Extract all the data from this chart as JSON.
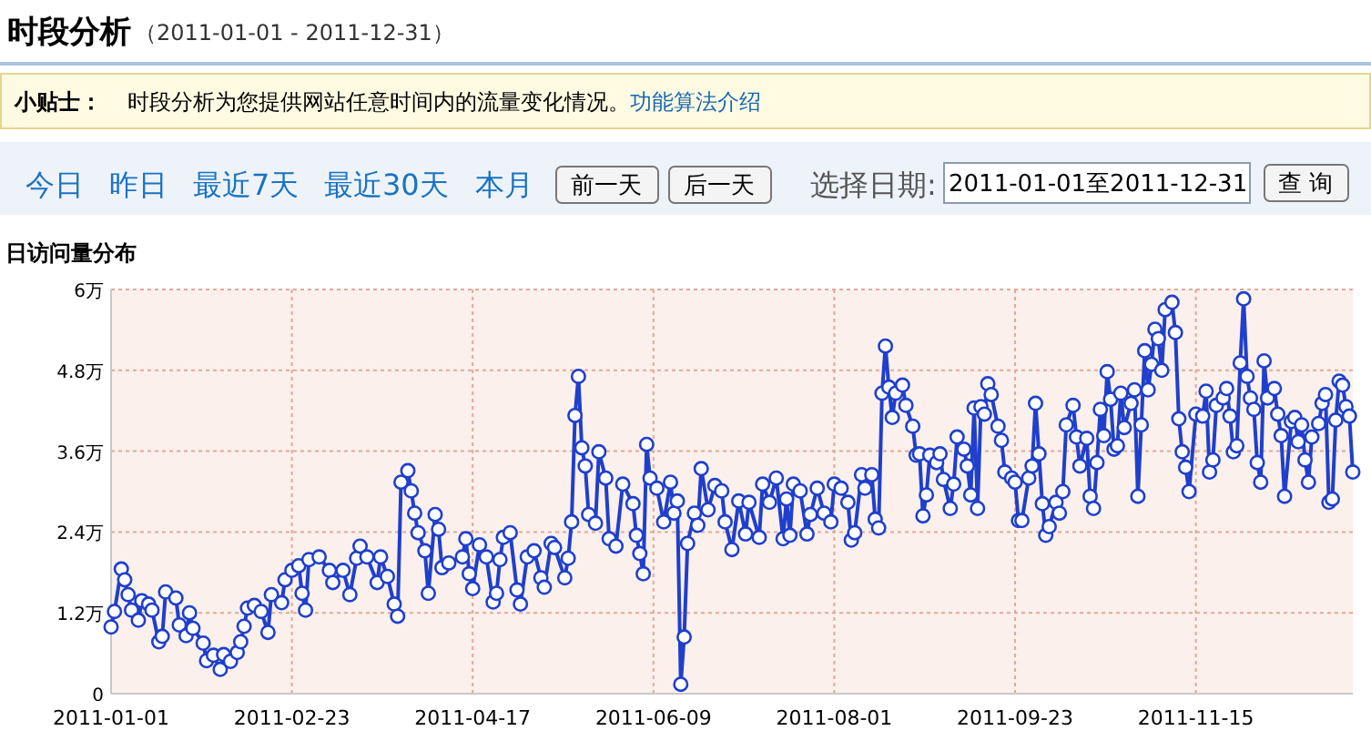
{
  "chart_data": {
    "type": "line",
    "title": "时段分析",
    "subtitle": "（2011-01-01 - 2011-12-31）",
    "annotations": [
      "小贴士：",
      "时段分析为您提供网站任意时间内的流量变化情况。",
      "功能算法介绍",
      "今日",
      "昨日",
      "最近7天",
      "最近30天",
      "本月",
      "前一天",
      "后一天",
      "选择日期:",
      "2011-01-01至2011-12-31",
      "查 询",
      "日访问量分布"
    ],
    "xlim": [
      "2011-01-01",
      "2011-12-31"
    ],
    "xticks": [
      "2011-01-01",
      "2011-02-23",
      "2011-04-17",
      "2011-06-09",
      "2011-08-01",
      "2011-09-23",
      "2011-11-15"
    ],
    "ylim": [
      0,
      6
    ],
    "yticks": [
      0,
      {
        "value": 1.2,
        "label": "1.2万"
      },
      {
        "value": 2.4,
        "label": "2.4万"
      },
      {
        "value": 3.6,
        "label": "3.6万"
      },
      {
        "value": 4.8,
        "label": "4.8万"
      },
      {
        "value": 6,
        "label": "6万"
      }
    ],
    "grid": true,
    "marker": "circle",
    "series": [
      {
        "color": "#1f3fcc",
        "x": [
          "2011-01-01",
          "2011-01-02",
          "2011-01-04",
          "2011-01-05",
          "2011-01-06",
          "2011-01-07",
          "2011-01-09",
          "2011-01-10",
          "2011-01-12",
          "2011-01-13",
          "2011-01-15",
          "2011-01-16",
          "2011-01-17",
          "2011-01-20",
          "2011-01-21",
          "2011-01-23",
          "2011-01-24",
          "2011-01-25",
          "2011-01-28",
          "2011-01-29",
          "2011-01-31",
          "2011-02-02",
          "2011-02-03",
          "2011-02-05",
          "2011-02-07",
          "2011-02-08",
          "2011-02-09",
          "2011-02-10",
          "2011-02-12",
          "2011-02-14",
          "2011-02-16",
          "2011-02-17",
          "2011-02-20",
          "2011-02-21",
          "2011-02-23",
          "2011-02-25",
          "2011-02-26",
          "2011-02-27",
          "2011-02-28",
          "2011-03-03",
          "2011-03-06",
          "2011-03-07",
          "2011-03-10",
          "2011-03-12",
          "2011-03-14",
          "2011-03-15",
          "2011-03-17",
          "2011-03-20",
          "2011-03-21",
          "2011-03-23",
          "2011-03-25",
          "2011-03-26",
          "2011-03-27",
          "2011-03-29",
          "2011-03-30",
          "2011-03-31",
          "2011-04-01",
          "2011-04-03",
          "2011-04-04",
          "2011-04-06",
          "2011-04-07",
          "2011-04-08",
          "2011-04-10",
          "2011-04-14",
          "2011-04-15",
          "2011-04-16",
          "2011-04-17",
          "2011-04-19",
          "2011-04-21",
          "2011-04-23",
          "2011-04-24",
          "2011-04-25",
          "2011-04-26",
          "2011-04-28",
          "2011-04-30",
          "2011-05-01",
          "2011-05-03",
          "2011-05-05",
          "2011-05-07",
          "2011-05-08",
          "2011-05-10",
          "2011-05-11",
          "2011-05-14",
          "2011-05-15",
          "2011-05-16",
          "2011-05-17",
          "2011-05-18",
          "2011-05-19",
          "2011-05-20",
          "2011-05-21",
          "2011-05-23",
          "2011-05-24",
          "2011-05-26",
          "2011-05-27",
          "2011-05-29",
          "2011-05-31",
          "2011-06-03",
          "2011-06-04",
          "2011-06-05",
          "2011-06-06",
          "2011-06-07",
          "2011-06-08",
          "2011-06-10",
          "2011-06-12",
          "2011-06-14",
          "2011-06-15",
          "2011-06-16",
          "2011-06-17",
          "2011-06-18",
          "2011-06-19",
          "2011-06-21",
          "2011-06-22",
          "2011-06-23",
          "2011-06-25",
          "2011-06-27",
          "2011-06-29",
          "2011-06-30",
          "2011-07-02",
          "2011-07-04",
          "2011-07-06",
          "2011-07-07",
          "2011-07-10",
          "2011-07-11",
          "2011-07-13",
          "2011-07-15",
          "2011-07-17",
          "2011-07-18",
          "2011-07-19",
          "2011-07-20",
          "2011-07-22",
          "2011-07-24",
          "2011-07-25",
          "2011-07-27",
          "2011-07-29",
          "2011-07-31",
          "2011-08-01",
          "2011-08-03",
          "2011-08-05",
          "2011-08-06",
          "2011-08-07",
          "2011-08-09",
          "2011-08-10",
          "2011-08-12",
          "2011-08-13",
          "2011-08-14",
          "2011-08-15",
          "2011-08-16",
          "2011-08-17",
          "2011-08-18",
          "2011-08-19",
          "2011-08-21",
          "2011-08-22",
          "2011-08-24",
          "2011-08-25",
          "2011-08-26",
          "2011-08-27",
          "2011-08-28",
          "2011-08-29",
          "2011-08-31",
          "2011-09-01",
          "2011-09-02",
          "2011-09-04",
          "2011-09-05",
          "2011-09-06",
          "2011-09-08",
          "2011-09-09",
          "2011-09-10",
          "2011-09-11",
          "2011-09-12",
          "2011-09-13",
          "2011-09-14",
          "2011-09-15",
          "2011-09-16",
          "2011-09-18",
          "2011-09-19",
          "2011-09-20",
          "2011-09-22",
          "2011-09-23",
          "2011-09-24",
          "2011-09-25",
          "2011-09-27",
          "2011-09-28",
          "2011-09-29",
          "2011-09-30",
          "2011-10-01",
          "2011-10-02",
          "2011-10-03",
          "2011-10-05",
          "2011-10-06",
          "2011-10-07",
          "2011-10-08",
          "2011-10-10",
          "2011-10-11",
          "2011-10-12",
          "2011-10-14",
          "2011-10-15",
          "2011-10-16",
          "2011-10-17",
          "2011-10-18",
          "2011-10-19",
          "2011-10-20",
          "2011-10-21",
          "2011-10-22",
          "2011-10-23",
          "2011-10-24",
          "2011-10-25",
          "2011-10-27",
          "2011-10-28",
          "2011-10-29",
          "2011-10-30",
          "2011-10-31",
          "2011-11-01",
          "2011-11-02",
          "2011-11-03",
          "2011-11-04",
          "2011-11-05",
          "2011-11-06",
          "2011-11-08",
          "2011-11-09",
          "2011-11-10",
          "2011-11-11",
          "2011-11-12",
          "2011-11-13",
          "2011-11-15",
          "2011-11-17",
          "2011-11-18",
          "2011-11-19",
          "2011-11-20",
          "2011-11-21",
          "2011-11-23",
          "2011-11-24",
          "2011-11-25",
          "2011-11-26",
          "2011-11-27",
          "2011-11-28",
          "2011-11-29",
          "2011-11-30",
          "2011-12-01",
          "2011-12-02",
          "2011-12-03",
          "2011-12-04",
          "2011-12-05",
          "2011-12-06",
          "2011-12-08",
          "2011-12-09",
          "2011-12-10",
          "2011-12-11",
          "2011-12-13",
          "2011-12-14",
          "2011-12-15",
          "2011-12-16",
          "2011-12-17",
          "2011-12-18",
          "2011-12-19",
          "2011-12-21",
          "2011-12-22",
          "2011-12-23",
          "2011-12-24",
          "2011-12-25",
          "2011-12-26",
          "2011-12-27",
          "2011-12-28",
          "2011-12-29",
          "2011-12-30",
          "2011-12-31"
        ],
        "values": [
          0.99,
          1.22,
          1.85,
          1.69,
          1.47,
          1.24,
          1.09,
          1.38,
          1.33,
          1.24,
          0.77,
          0.85,
          1.51,
          1.42,
          1.02,
          0.86,
          1.2,
          0.97,
          0.75,
          0.49,
          0.57,
          0.36,
          0.58,
          0.48,
          0.61,
          0.77,
          1.0,
          1.27,
          1.31,
          1.22,
          0.91,
          1.47,
          1.35,
          1.69,
          1.83,
          1.9,
          1.49,
          1.24,
          1.99,
          2.03,
          1.83,
          1.65,
          1.83,
          1.47,
          2.01,
          2.19,
          2.03,
          1.65,
          2.03,
          1.74,
          1.33,
          1.15,
          3.14,
          3.31,
          3.01,
          2.68,
          2.39,
          2.12,
          1.49,
          2.66,
          2.44,
          1.87,
          1.94,
          2.03,
          2.3,
          1.78,
          1.56,
          2.21,
          2.03,
          1.36,
          1.49,
          1.99,
          2.32,
          2.39,
          1.54,
          1.33,
          2.03,
          2.12,
          1.72,
          1.58,
          2.23,
          2.17,
          1.72,
          2.01,
          2.55,
          4.13,
          4.71,
          3.65,
          3.38,
          2.66,
          2.53,
          3.59,
          3.2,
          2.3,
          2.19,
          3.11,
          2.82,
          2.35,
          2.08,
          1.78,
          3.7,
          3.2,
          3.05,
          2.55,
          3.14,
          2.68,
          2.86,
          0.14,
          0.84,
          2.23,
          2.68,
          2.5,
          3.34,
          2.73,
          3.09,
          3.01,
          2.55,
          2.14,
          2.86,
          2.37,
          2.84,
          2.32,
          3.11,
          2.84,
          3.2,
          2.3,
          2.89,
          2.35,
          3.11,
          3.01,
          2.37,
          2.66,
          3.05,
          2.68,
          2.55,
          3.11,
          3.05,
          2.84,
          2.28,
          2.39,
          3.25,
          3.05,
          3.25,
          2.59,
          2.46,
          4.46,
          5.16,
          4.55,
          4.1,
          4.46,
          4.58,
          4.28,
          3.97,
          3.54,
          3.56,
          2.64,
          2.95,
          3.54,
          3.43,
          3.56,
          3.18,
          2.75,
          3.11,
          3.81,
          3.63,
          3.38,
          2.95,
          4.24,
          2.75,
          4.26,
          4.15,
          4.6,
          4.44,
          3.97,
          3.76,
          3.29,
          3.2,
          3.14,
          2.57,
          2.57,
          3.2,
          3.38,
          4.31,
          3.56,
          2.82,
          2.35,
          2.48,
          2.84,
          2.68,
          3.0,
          3.99,
          4.28,
          3.81,
          3.38,
          3.79,
          2.93,
          2.75,
          3.43,
          4.22,
          3.83,
          4.78,
          4.37,
          3.63,
          3.68,
          4.46,
          3.95,
          4.31,
          4.51,
          2.93,
          3.99,
          5.09,
          4.51,
          4.89,
          5.41,
          5.27,
          4.8,
          5.7,
          5.81,
          5.36,
          4.08,
          3.59,
          3.36,
          3.0,
          4.15,
          4.12,
          4.49,
          3.29,
          3.47,
          4.28,
          4.39,
          4.53,
          4.12,
          3.59,
          3.68,
          4.91,
          5.86,
          4.71,
          4.39,
          4.22,
          3.43,
          3.14,
          4.94,
          4.39,
          4.53,
          4.15,
          3.83,
          2.93,
          4.04,
          4.1,
          3.74,
          3.99,
          3.47,
          3.14,
          3.81,
          4.01,
          4.31,
          4.44,
          2.84,
          2.89,
          4.06,
          4.64,
          4.58,
          4.26,
          4.12,
          3.29
        ]
      }
    ]
  }
}
